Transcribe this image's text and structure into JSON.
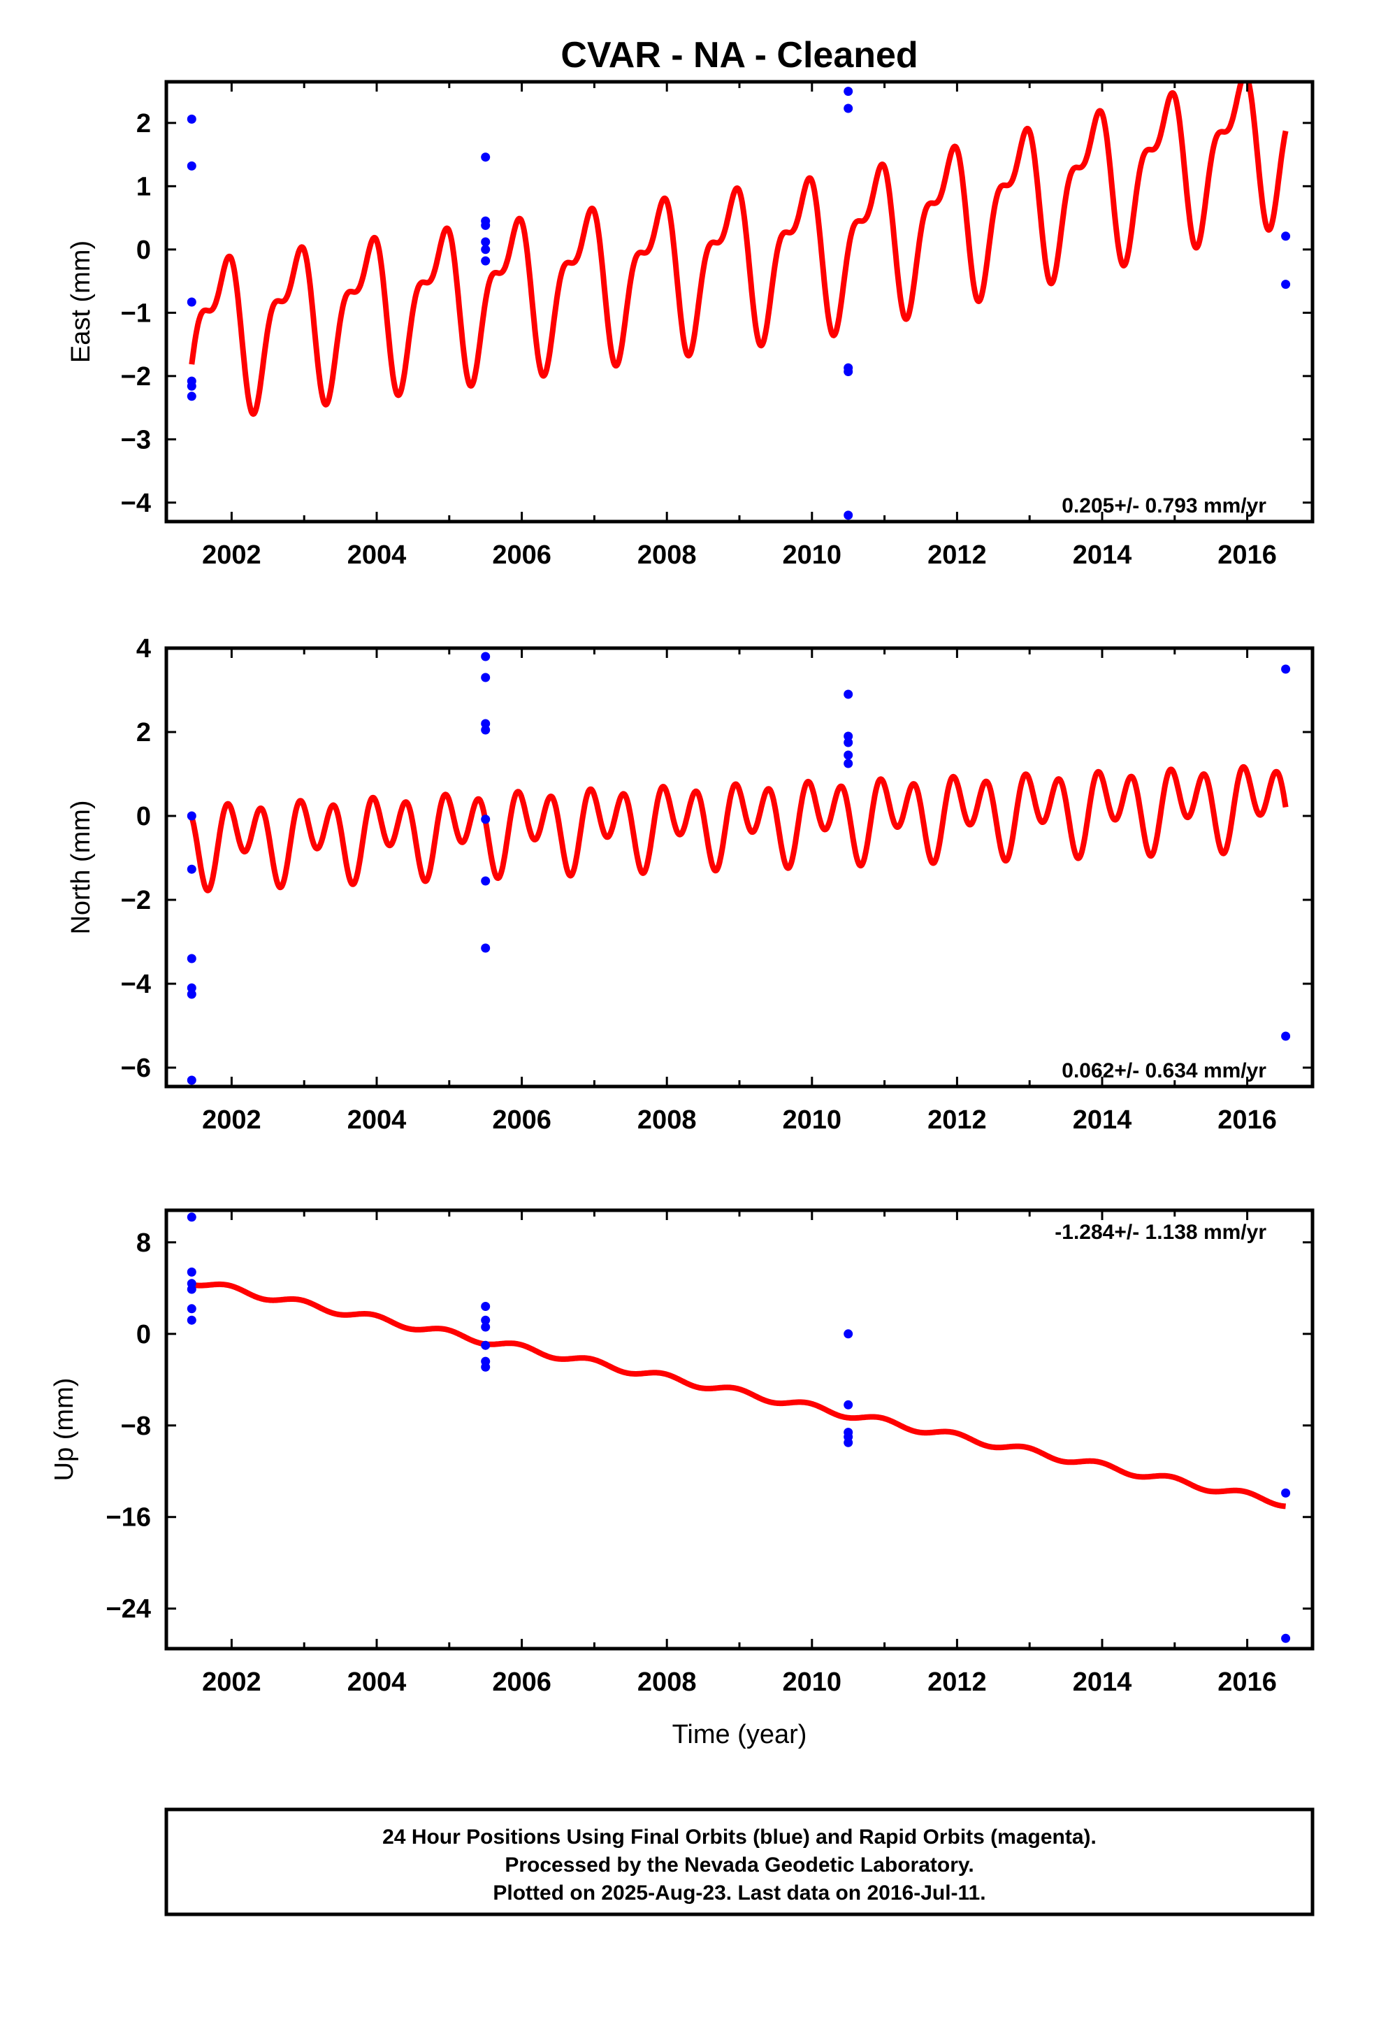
{
  "title": "CVAR  - NA - Cleaned",
  "colors": {
    "model": "#ff0000",
    "final_orbits": "#0000ff",
    "frame": "#000000"
  },
  "footer": {
    "lines": [
      "24 Hour Positions Using Final Orbits (blue) and Rapid Orbits (magenta).",
      "Processed by the Nevada Geodetic Laboratory.",
      "Plotted on 2025-Aug-23. Last data on 2016-Jul-11."
    ]
  },
  "chart_data": [
    {
      "type": "scatter",
      "name": "east",
      "ylabel": "East (mm)",
      "xlabel": "",
      "xlim": [
        2001.1,
        2016.9
      ],
      "ylim": [
        -4.3,
        2.65
      ],
      "xticks": [
        2002,
        2004,
        2006,
        2008,
        2010,
        2012,
        2014,
        2016
      ],
      "yticks": [
        -4,
        -3,
        -2,
        -1,
        0,
        1,
        2
      ],
      "rate_label": "0.205+/- 0.793 mm/yr",
      "points": [
        [
          2001.45,
          2.06
        ],
        [
          2001.45,
          1.32
        ],
        [
          2001.45,
          -0.83
        ],
        [
          2001.45,
          -2.08
        ],
        [
          2001.45,
          -2.16
        ],
        [
          2001.45,
          -2.32
        ],
        [
          2005.5,
          1.46
        ],
        [
          2005.5,
          0.45
        ],
        [
          2005.5,
          0.38
        ],
        [
          2005.5,
          0.12
        ],
        [
          2005.5,
          0.0
        ],
        [
          2005.5,
          -0.18
        ],
        [
          2010.5,
          2.5
        ],
        [
          2010.5,
          2.23
        ],
        [
          2010.5,
          -1.87
        ],
        [
          2010.5,
          -1.93
        ],
        [
          2010.5,
          -4.2
        ],
        [
          2016.53,
          0.21
        ],
        [
          2016.53,
          -0.55
        ]
      ],
      "model": {
        "x_range": [
          2001.45,
          2016.53
        ],
        "intercept_at_2001": -1.5,
        "slope": 0.205,
        "trend_segments": [
          [
            2001.45,
            -1.3
          ],
          [
            2005.5,
            -0.7
          ],
          [
            2010.5,
            0.1
          ],
          [
            2016.53,
            1.8
          ]
        ],
        "annual_amplitude": 1.0,
        "annual_phase": 0.4,
        "semiannual_amplitude": 0.5,
        "semiannual_phase": 0.6
      }
    },
    {
      "type": "scatter",
      "name": "north",
      "ylabel": "North (mm)",
      "xlabel": "",
      "xlim": [
        2001.1,
        2016.9
      ],
      "ylim": [
        -6.45,
        4.0
      ],
      "xticks": [
        2002,
        2004,
        2006,
        2008,
        2010,
        2012,
        2014,
        2016
      ],
      "yticks": [
        -6,
        -4,
        -2,
        0,
        2,
        4
      ],
      "rate_label": "0.062+/- 0.634 mm/yr",
      "points": [
        [
          2001.45,
          0.0
        ],
        [
          2001.45,
          -1.27
        ],
        [
          2001.45,
          -3.4
        ],
        [
          2001.45,
          -4.1
        ],
        [
          2001.45,
          -4.25
        ],
        [
          2001.45,
          -6.3
        ],
        [
          2005.5,
          3.8
        ],
        [
          2005.5,
          3.3
        ],
        [
          2005.5,
          2.2
        ],
        [
          2005.5,
          2.05
        ],
        [
          2005.5,
          -0.08
        ],
        [
          2005.5,
          -1.55
        ],
        [
          2005.5,
          -3.15
        ],
        [
          2010.5,
          2.9
        ],
        [
          2010.5,
          1.9
        ],
        [
          2010.5,
          1.75
        ],
        [
          2010.5,
          1.45
        ],
        [
          2010.5,
          1.25
        ],
        [
          2016.53,
          3.5
        ],
        [
          2016.53,
          -5.25
        ]
      ],
      "model": {
        "x_range": [
          2001.45,
          2016.53
        ],
        "trend_segments": [
          [
            2001.45,
            -0.6
          ],
          [
            2005.5,
            -0.3
          ],
          [
            2010.5,
            0.0
          ],
          [
            2016.53,
            0.35
          ]
        ],
        "annual_amplitude": 0.45,
        "annual_phase": 0.1,
        "semiannual_amplitude": 0.75,
        "semiannual_phase": 0.2
      }
    },
    {
      "type": "scatter",
      "name": "up",
      "ylabel": "Up (mm)",
      "xlabel": "Time (year)",
      "xlim": [
        2001.1,
        2016.9
      ],
      "ylim": [
        -27.5,
        10.8
      ],
      "xticks": [
        2002,
        2004,
        2006,
        2008,
        2010,
        2012,
        2014,
        2016
      ],
      "yticks": [
        -24,
        -16,
        -8,
        0,
        8
      ],
      "rate_label": "-1.284+/- 1.138 mm/yr",
      "points": [
        [
          2001.45,
          10.2
        ],
        [
          2001.45,
          5.4
        ],
        [
          2001.45,
          4.4
        ],
        [
          2001.45,
          3.9
        ],
        [
          2001.45,
          2.2
        ],
        [
          2001.45,
          1.2
        ],
        [
          2005.5,
          2.4
        ],
        [
          2005.5,
          1.2
        ],
        [
          2005.5,
          0.6
        ],
        [
          2005.5,
          -1.0
        ],
        [
          2005.5,
          -2.4
        ],
        [
          2005.5,
          -2.9
        ],
        [
          2010.5,
          0.0
        ],
        [
          2010.5,
          -6.2
        ],
        [
          2010.5,
          -8.6
        ],
        [
          2010.5,
          -9.0
        ],
        [
          2010.5,
          -9.5
        ],
        [
          2016.53,
          -13.9
        ],
        [
          2016.53,
          -26.6
        ]
      ],
      "model": {
        "x_range": [
          2001.45,
          2016.53
        ],
        "trend_segments": [
          [
            2001.45,
            4.6
          ],
          [
            2016.53,
            -14.8
          ]
        ],
        "annual_amplitude": 0.3,
        "annual_phase": 0.3,
        "semiannual_amplitude": 0.0,
        "semiannual_phase": 0.0
      }
    }
  ]
}
